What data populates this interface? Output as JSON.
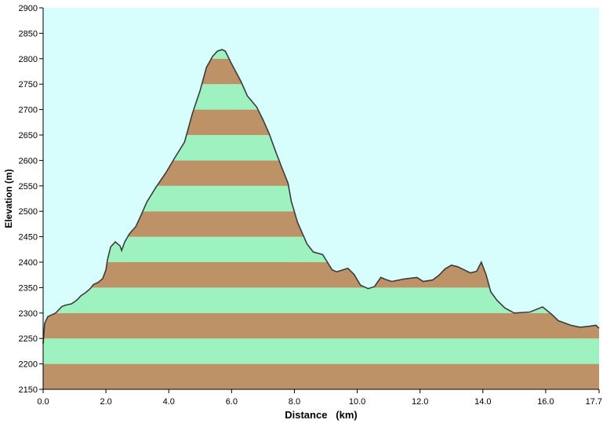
{
  "chart_data": {
    "type": "area",
    "xlabel": "Distance   (km)",
    "ylabel": "Elevation (m)",
    "xlim": [
      0,
      17.7
    ],
    "ylim": [
      2150,
      2900
    ],
    "x_ticks": [
      0.0,
      2.0,
      4.0,
      6.0,
      8.0,
      10.0,
      12.0,
      14.0,
      16.0,
      17.7
    ],
    "x_tick_labels": [
      "0.0",
      "2.0",
      "4.0",
      "6.0",
      "8.0",
      "10.0",
      "12.0",
      "14.0",
      "16.0",
      "17.7"
    ],
    "y_ticks": [
      2150,
      2200,
      2250,
      2300,
      2350,
      2400,
      2450,
      2500,
      2550,
      2600,
      2650,
      2700,
      2750,
      2800,
      2850,
      2900
    ],
    "y_tick_labels": [
      "2150",
      "2200",
      "2250",
      "2300",
      "2350",
      "2400",
      "2450",
      "2500",
      "2550",
      "2600",
      "2650",
      "2700",
      "2750",
      "2800",
      "2850",
      "2900"
    ],
    "band_step": 50,
    "colors": {
      "sky": "#d7fdfd",
      "band_green": "#9ef2c0",
      "band_brown": "#bc9266",
      "outline": "#3c3c3c",
      "axis": "#000000"
    },
    "series": [
      {
        "x": [
          0.0,
          0.05,
          0.15,
          0.4,
          0.6,
          0.75,
          0.9,
          1.0,
          1.1,
          1.2,
          1.35,
          1.5,
          1.6,
          1.75,
          1.9,
          2.0,
          2.05,
          2.15,
          2.3,
          2.45,
          2.5,
          2.6,
          2.75,
          2.95,
          3.1,
          3.3,
          3.6,
          3.9,
          4.2,
          4.5,
          4.75,
          5.0,
          5.2,
          5.4,
          5.55,
          5.7,
          5.8,
          6.0,
          6.3,
          6.5,
          6.8,
          7.0,
          7.2,
          7.4,
          7.6,
          7.8,
          7.9,
          8.1,
          8.4,
          8.6,
          8.9,
          9.2,
          9.35,
          9.7,
          9.9,
          10.1,
          10.35,
          10.55,
          10.75,
          10.9,
          11.1,
          11.5,
          11.9,
          12.1,
          12.4,
          12.6,
          12.8,
          13.0,
          13.2,
          13.4,
          13.6,
          13.8,
          13.95,
          14.1,
          14.25,
          14.45,
          14.7,
          15.0,
          15.5,
          15.9,
          16.2,
          16.4,
          16.8,
          17.1,
          17.4,
          17.6,
          17.7
        ],
        "y": [
          2240,
          2280,
          2293,
          2300,
          2313,
          2316,
          2318,
          2322,
          2327,
          2334,
          2340,
          2348,
          2356,
          2360,
          2368,
          2385,
          2405,
          2430,
          2440,
          2432,
          2423,
          2440,
          2456,
          2470,
          2490,
          2518,
          2548,
          2575,
          2606,
          2636,
          2692,
          2738,
          2783,
          2805,
          2815,
          2818,
          2815,
          2790,
          2755,
          2727,
          2705,
          2680,
          2652,
          2618,
          2586,
          2555,
          2520,
          2478,
          2436,
          2420,
          2415,
          2385,
          2381,
          2388,
          2376,
          2355,
          2348,
          2352,
          2370,
          2366,
          2362,
          2367,
          2370,
          2362,
          2365,
          2374,
          2387,
          2394,
          2391,
          2385,
          2379,
          2382,
          2400,
          2376,
          2342,
          2325,
          2310,
          2300,
          2302,
          2312,
          2297,
          2285,
          2276,
          2272,
          2274,
          2276,
          2270
        ]
      }
    ]
  }
}
